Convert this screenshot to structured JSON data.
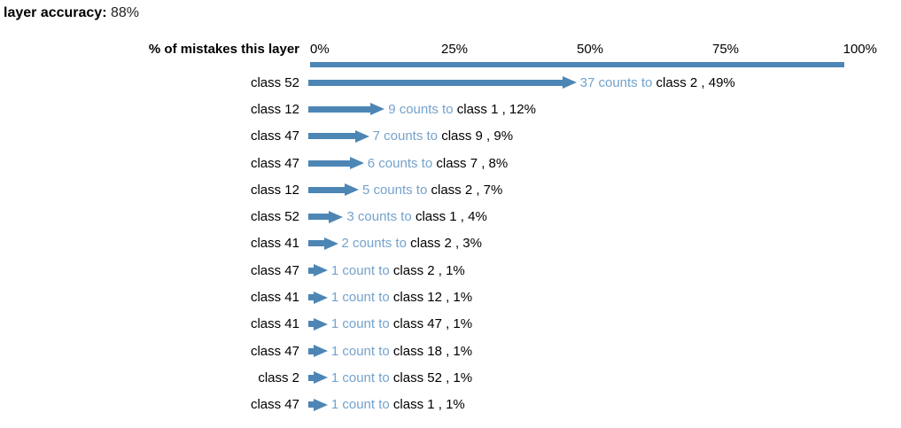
{
  "title": {
    "label": "layer accuracy:",
    "value": "88%"
  },
  "header": {
    "axis_label": "% of mistakes this layer"
  },
  "axis": {
    "ticks": [
      "0%",
      "25%",
      "50%",
      "75%",
      "100%"
    ]
  },
  "colors": {
    "bar_blue": "#4D86B5",
    "text_blue": "#74A2CC",
    "text_black": "#000000"
  },
  "chart_data": {
    "type": "bar",
    "title": "layer accuracy: 88%",
    "layer_accuracy": "88%",
    "xlabel": "% of mistakes this layer",
    "xlim": [
      0,
      100
    ],
    "x_ticks": [
      "0%",
      "25%",
      "50%",
      "75%",
      "100%"
    ],
    "orientation": "horizontal",
    "rows": [
      {
        "source": "class 52",
        "count": 37,
        "target": "class 2",
        "percent": 49,
        "count_label": "37 counts to",
        "detail_label": "class 2 , 49%"
      },
      {
        "source": "class 12",
        "count": 9,
        "target": "class 1",
        "percent": 12,
        "count_label": "9 counts to",
        "detail_label": "class 1 , 12%"
      },
      {
        "source": "class 47",
        "count": 7,
        "target": "class 9",
        "percent": 9,
        "count_label": "7 counts to",
        "detail_label": "class 9 , 9%"
      },
      {
        "source": "class 47",
        "count": 6,
        "target": "class 7",
        "percent": 8,
        "count_label": "6 counts to",
        "detail_label": "class 7 , 8%"
      },
      {
        "source": "class 12",
        "count": 5,
        "target": "class 2",
        "percent": 7,
        "count_label": "5 counts to",
        "detail_label": "class 2 , 7%"
      },
      {
        "source": "class 52",
        "count": 3,
        "target": "class 1",
        "percent": 4,
        "count_label": "3 counts to",
        "detail_label": "class 1 , 4%"
      },
      {
        "source": "class 41",
        "count": 2,
        "target": "class 2",
        "percent": 3,
        "count_label": "2 counts to",
        "detail_label": "class 2 , 3%"
      },
      {
        "source": "class 47",
        "count": 1,
        "target": "class 2",
        "percent": 1,
        "count_label": "1 count to",
        "detail_label": "class 2 , 1%"
      },
      {
        "source": "class 41",
        "count": 1,
        "target": "class 12",
        "percent": 1,
        "count_label": "1 count to",
        "detail_label": "class 12 , 1%"
      },
      {
        "source": "class 41",
        "count": 1,
        "target": "class 47",
        "percent": 1,
        "count_label": "1 count to",
        "detail_label": "class 47 , 1%"
      },
      {
        "source": "class 47",
        "count": 1,
        "target": "class 18",
        "percent": 1,
        "count_label": "1 count to",
        "detail_label": "class 18 , 1%"
      },
      {
        "source": "class 2",
        "count": 1,
        "target": "class 52",
        "percent": 1,
        "count_label": "1 count to",
        "detail_label": "class 52 , 1%"
      },
      {
        "source": "class 47",
        "count": 1,
        "target": "class 1",
        "percent": 1,
        "count_label": "1 count to",
        "detail_label": "class 1 , 1%"
      }
    ]
  }
}
